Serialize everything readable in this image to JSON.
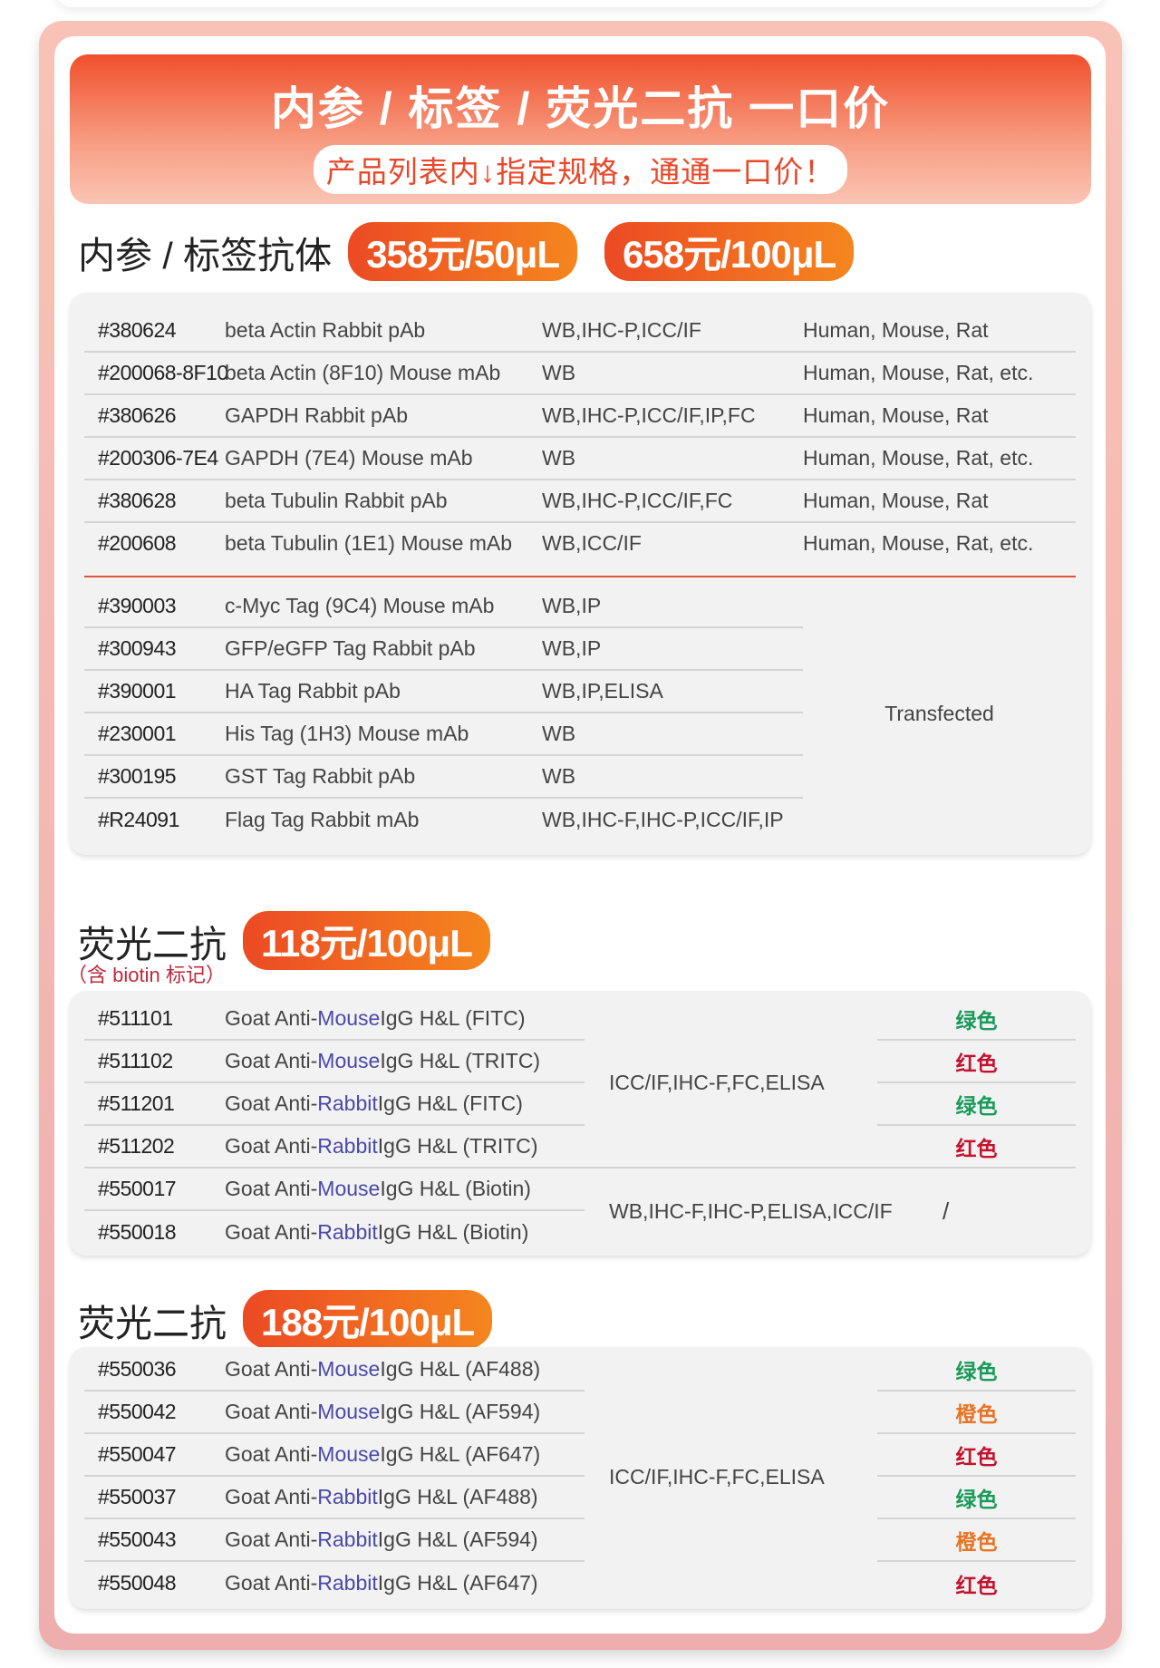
{
  "banner": {
    "title": "内参 / 标签 / 荧光二抗 一口价",
    "subtitle": "产品列表内↓指定规格，通通一口价！"
  },
  "section1": {
    "title": "内参 / 标签抗体",
    "prices": [
      "358元/50μL",
      "658元/100μL"
    ],
    "rows": [
      {
        "id": "#380624",
        "name": "beta Actin Rabbit pAb",
        "app": "WB,IHC-P,ICC/IF",
        "species": "Human, Mouse, Rat"
      },
      {
        "id": "#200068-8F10",
        "name": "beta Actin (8F10) Mouse mAb",
        "app": "WB",
        "species": "Human, Mouse, Rat, etc."
      },
      {
        "id": "#380626",
        "name": "GAPDH Rabbit pAb",
        "app": "WB,IHC-P,ICC/IF,IP,FC",
        "species": "Human, Mouse, Rat"
      },
      {
        "id": "#200306-7E4",
        "name": "GAPDH (7E4) Mouse mAb",
        "app": "WB",
        "species": "Human, Mouse, Rat, etc."
      },
      {
        "id": "#380628",
        "name": "beta Tubulin Rabbit pAb",
        "app": "WB,IHC-P,ICC/IF,FC",
        "species": "Human, Mouse, Rat"
      },
      {
        "id": "#200608",
        "name": "beta Tubulin (1E1) Mouse mAb",
        "app": "WB,ICC/IF",
        "species": "Human, Mouse, Rat, etc."
      }
    ],
    "tag_rows": [
      {
        "id": "#390003",
        "name": "c-Myc Tag (9C4) Mouse mAb",
        "app": "WB,IP"
      },
      {
        "id": "#300943",
        "name": "GFP/eGFP Tag Rabbit pAb",
        "app": "WB,IP"
      },
      {
        "id": "#390001",
        "name": "HA Tag Rabbit pAb",
        "app": "WB,IP,ELISA"
      },
      {
        "id": "#230001",
        "name": "His Tag (1H3) Mouse mAb",
        "app": "WB"
      },
      {
        "id": "#300195",
        "name": "GST Tag Rabbit pAb",
        "app": "WB"
      },
      {
        "id": "#R24091",
        "name": "Flag Tag Rabbit mAb",
        "app": "WB,IHC-F,IHC-P,ICC/IF,IP"
      }
    ],
    "tag_species": "Transfected"
  },
  "section2": {
    "title": "荧光二抗",
    "price": "118元/100μL",
    "note": "（含 biotin 标记）",
    "rows": [
      {
        "id": "#511101",
        "pre": "Goat Anti-",
        "host": "Mouse",
        "post": " IgG H&L (FITC)",
        "color": "绿色",
        "tone": "green"
      },
      {
        "id": "#511102",
        "pre": "Goat Anti-",
        "host": "Mouse",
        "post": " IgG H&L (TRITC)",
        "color": "红色",
        "tone": "red"
      },
      {
        "id": "#511201",
        "pre": "Goat Anti-",
        "host": "Rabbit",
        "post": " IgG H&L (FITC)",
        "color": "绿色",
        "tone": "green"
      },
      {
        "id": "#511202",
        "pre": "Goat Anti-",
        "host": "Rabbit",
        "post": " IgG H&L (TRITC)",
        "color": "红色",
        "tone": "red"
      },
      {
        "id": "#550017",
        "pre": "Goat Anti-",
        "host": "Mouse",
        "post": " IgG H&L (Biotin)"
      },
      {
        "id": "#550018",
        "pre": "Goat Anti-",
        "host": "Rabbit",
        "post": " IgG H&L (Biotin)"
      }
    ],
    "app_fluor": "ICC/IF,IHC-F,FC,ELISA",
    "app_biotin": "WB,IHC-F,IHC-P,ELISA,ICC/IF",
    "biotin_color": "/"
  },
  "section3": {
    "title": "荧光二抗",
    "price": "188元/100μL",
    "rows": [
      {
        "id": "#550036",
        "pre": "Goat Anti-",
        "host": "Mouse",
        "post": " IgG H&L (AF488)",
        "color": "绿色",
        "tone": "green"
      },
      {
        "id": "#550042",
        "pre": "Goat Anti-",
        "host": "Mouse",
        "post": " IgG H&L (AF594)",
        "color": "橙色",
        "tone": "orange"
      },
      {
        "id": "#550047",
        "pre": "Goat Anti-",
        "host": "Mouse",
        "post": " IgG H&L (AF647)",
        "color": "红色",
        "tone": "red"
      },
      {
        "id": "#550037",
        "pre": "Goat Anti-",
        "host": "Rabbit",
        "post": " IgG H&L (AF488)",
        "color": "绿色",
        "tone": "green"
      },
      {
        "id": "#550043",
        "pre": "Goat Anti-",
        "host": "Rabbit",
        "post": " IgG H&L (AF594)",
        "color": "橙色",
        "tone": "orange"
      },
      {
        "id": "#550048",
        "pre": "Goat Anti-",
        "host": "Rabbit",
        "post": " IgG H&L (AF647)",
        "color": "红色",
        "tone": "red"
      }
    ],
    "app": "ICC/IF,IHC-F,FC,ELISA"
  },
  "colors": {
    "accent": "#f05028",
    "frame": "#f2b5b0",
    "mouse": "#4a48a8",
    "green": "#1a9a5a",
    "red": "#c3122e",
    "orange": "#e87424"
  }
}
